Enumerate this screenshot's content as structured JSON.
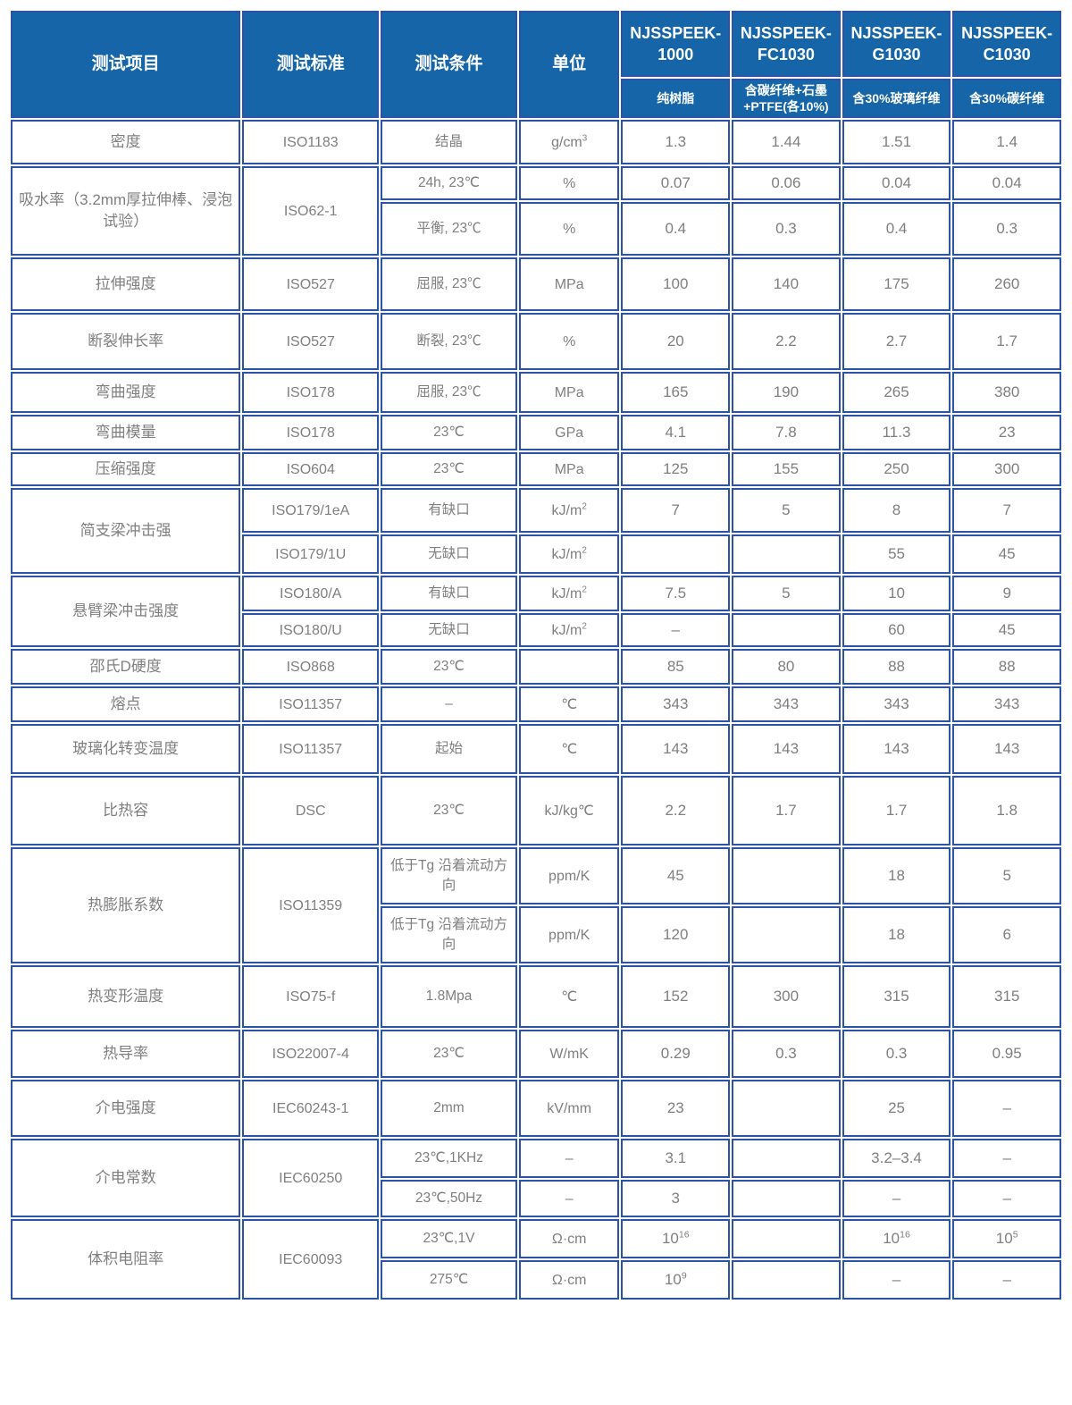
{
  "table": {
    "columns": {
      "item": "测试项目",
      "standard": "测试标准",
      "condition": "测试条件",
      "unit": "单位"
    },
    "products": [
      {
        "model": "NJSSPEEK-1000",
        "desc": "纯树脂"
      },
      {
        "model": "NJSSPEEK-FC1030",
        "desc": "含碳纤维+石墨+PTFE(各10%)"
      },
      {
        "model": "NJSSPEEK-G1030",
        "desc": "含30%玻璃纤维"
      },
      {
        "model": "NJSSPEEK-C1030",
        "desc": "含30%碳纤维"
      }
    ],
    "groups": [
      {
        "item": "密度",
        "rows": [
          {
            "standard": "ISO1183",
            "condition": "结晶",
            "unit": "g/cm^3",
            "values": [
              "1.3",
              "1.44",
              "1.51",
              "1.4"
            ]
          }
        ]
      },
      {
        "item": "吸水率（3.2mm厚拉伸棒、浸泡试验）",
        "standard": "ISO62-1",
        "rows": [
          {
            "condition": "24h, 23℃",
            "unit": "%",
            "values": [
              "0.07",
              "0.06",
              "0.04",
              "0.04"
            ]
          },
          {
            "condition": "平衡, 23℃",
            "unit": "%",
            "values": [
              "0.4",
              "0.3",
              "0.4",
              "0.3"
            ]
          }
        ]
      },
      {
        "item": "拉伸强度",
        "rows": [
          {
            "standard": "ISO527",
            "condition": "屈服, 23℃",
            "unit": "MPa",
            "values": [
              "100",
              "140",
              "175",
              "260"
            ]
          }
        ]
      },
      {
        "item": "断裂伸长率",
        "rows": [
          {
            "standard": "ISO527",
            "condition": "断裂, 23℃",
            "unit": "%",
            "values": [
              "20",
              "2.2",
              "2.7",
              "1.7"
            ]
          }
        ]
      },
      {
        "item": "弯曲强度",
        "rows": [
          {
            "standard": "ISO178",
            "condition": "屈服, 23℃",
            "unit": "MPa",
            "values": [
              "165",
              "190",
              "265",
              "380"
            ]
          }
        ]
      },
      {
        "item": "弯曲模量",
        "rows": [
          {
            "standard": "ISO178",
            "condition": "23℃",
            "unit": "GPa",
            "values": [
              "4.1",
              "7.8",
              "11.3",
              "23"
            ]
          }
        ]
      },
      {
        "item": "压缩强度",
        "rows": [
          {
            "standard": "ISO604",
            "condition": "23℃",
            "unit": "MPa",
            "values": [
              "125",
              "155",
              "250",
              "300"
            ]
          }
        ]
      },
      {
        "item": "简支梁冲击强",
        "rows": [
          {
            "standard": "ISO179/1eA",
            "condition": "有缺口",
            "unit": "kJ/m^2",
            "values": [
              "7",
              "5",
              "8",
              "7"
            ]
          },
          {
            "standard": "ISO179/1U",
            "condition": "无缺口",
            "unit": "kJ/m^2",
            "values": [
              "",
              "",
              "55",
              "45"
            ]
          }
        ]
      },
      {
        "item": "悬臂梁冲击强度",
        "rows": [
          {
            "standard": "ISO180/A",
            "condition": "有缺口",
            "unit": "kJ/m^2",
            "values": [
              "7.5",
              "5",
              "10",
              "9"
            ]
          },
          {
            "standard": "ISO180/U",
            "condition": "无缺口",
            "unit": "kJ/m^2",
            "values": [
              "–",
              "",
              "60",
              "45"
            ]
          }
        ]
      },
      {
        "item": "邵氏D硬度",
        "rows": [
          {
            "standard": "ISO868",
            "condition": "23℃",
            "unit": "",
            "values": [
              "85",
              "80",
              "88",
              "88"
            ]
          }
        ]
      },
      {
        "item": "熔点",
        "rows": [
          {
            "standard": "ISO11357",
            "condition": "–",
            "unit": "℃",
            "values": [
              "343",
              "343",
              "343",
              "343"
            ]
          }
        ]
      },
      {
        "item": "玻璃化转变温度",
        "rows": [
          {
            "standard": "ISO11357",
            "condition": "起始",
            "unit": "℃",
            "values": [
              "143",
              "143",
              "143",
              "143"
            ]
          }
        ]
      },
      {
        "item": "比热容",
        "rows": [
          {
            "standard": "DSC",
            "condition": "23℃",
            "unit": "kJ/kg℃",
            "values": [
              "2.2",
              "1.7",
              "1.7",
              "1.8"
            ]
          }
        ]
      },
      {
        "item": "热膨胀系数",
        "standard": "ISO11359",
        "rows": [
          {
            "condition": "低于Tg 沿着流动方向",
            "unit": "ppm/K",
            "values": [
              "45",
              "",
              "18",
              "5"
            ]
          },
          {
            "condition": "低于Tg 沿着流动方向",
            "unit": "ppm/K",
            "values": [
              "120",
              "",
              "18",
              "6"
            ]
          }
        ]
      },
      {
        "item": "热变形温度",
        "rows": [
          {
            "standard": "ISO75-f",
            "condition": "1.8Mpa",
            "unit": "℃",
            "values": [
              "152",
              "300",
              "315",
              "315"
            ]
          }
        ]
      },
      {
        "item": "热导率",
        "rows": [
          {
            "standard": "ISO22007-4",
            "condition": "23℃",
            "unit": "W/mK",
            "values": [
              "0.29",
              "0.3",
              "0.3",
              "0.95"
            ]
          }
        ]
      },
      {
        "item": "介电强度",
        "rows": [
          {
            "standard": "IEC60243-1",
            "condition": "2mm",
            "unit": "kV/mm",
            "values": [
              "23",
              "",
              "25",
              "–"
            ]
          }
        ]
      },
      {
        "item": "介电常数",
        "standard": "IEC60250",
        "rows": [
          {
            "condition": "23℃,1KHz",
            "unit": "–",
            "values": [
              "3.1",
              "",
              "3.2–3.4",
              "–"
            ]
          },
          {
            "condition": "23℃,50Hz",
            "unit": "–",
            "values": [
              "3",
              "",
              "–",
              "–"
            ]
          }
        ]
      },
      {
        "item": "体积电阻率",
        "standard": "IEC60093",
        "rows": [
          {
            "condition": "23℃,1V",
            "unit": "Ω·cm",
            "values": [
              "10^16",
              "",
              "10^16",
              "10^5"
            ]
          },
          {
            "condition": "275℃",
            "unit": "Ω·cm",
            "values": [
              "10^9",
              "",
              "–",
              "–"
            ]
          }
        ]
      }
    ],
    "colors": {
      "header_bg": "#1565a8",
      "border": "#2b53a7",
      "body_text": "#7f7f7f"
    }
  }
}
